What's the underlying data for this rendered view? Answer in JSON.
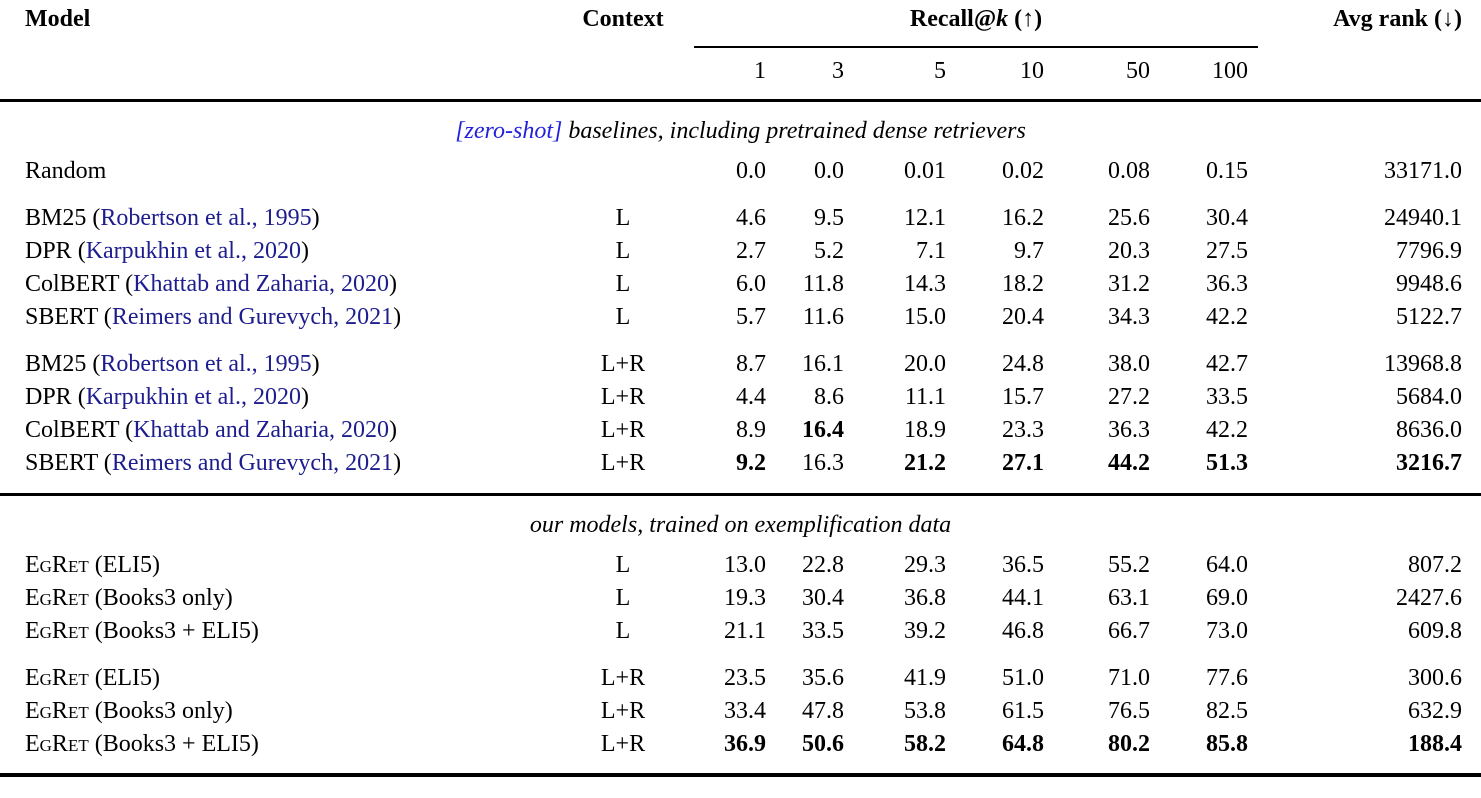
{
  "header": {
    "model": "Model",
    "context": "Context",
    "recall_pre": "Recall@",
    "recall_k": "k",
    "recall_post": " (↑)",
    "avg_rank": "Avg rank (↓)",
    "k_values": [
      "1",
      "3",
      "5",
      "10",
      "50",
      "100"
    ]
  },
  "colors": {
    "citation_link": "#1d1d8e",
    "section_link": "#2222dd",
    "text": "#000000",
    "background": "#ffffff"
  },
  "chart_data": {
    "type": "table",
    "title": "Recall@k and average rank of baselines vs. our models",
    "columns": [
      "Model",
      "Context",
      "Recall@1",
      "Recall@3",
      "Recall@5",
      "Recall@10",
      "Recall@50",
      "Recall@100",
      "Avg rank"
    ]
  },
  "sections": [
    {
      "title": {
        "link_text": "[zero-shot]",
        "rest_text": " baselines, including pretrained dense retrievers"
      },
      "groups": [
        {
          "rows": [
            {
              "model": {
                "sc": "",
                "plain": "Random",
                "cite": "",
                "after": ""
              },
              "context": "",
              "values": [
                "0.0",
                "0.0",
                "0.01",
                "0.02",
                "0.08",
                "0.15"
              ],
              "bold": [
                0,
                0,
                0,
                0,
                0,
                0
              ],
              "avg": "33171.0",
              "avg_bold": false
            }
          ]
        },
        {
          "rows": [
            {
              "model": {
                "sc": "",
                "plain": "BM25 (",
                "cite": "Robertson et al., 1995",
                "after": ")"
              },
              "context": "L",
              "values": [
                "4.6",
                "9.5",
                "12.1",
                "16.2",
                "25.6",
                "30.4"
              ],
              "bold": [
                0,
                0,
                0,
                0,
                0,
                0
              ],
              "avg": "24940.1",
              "avg_bold": false
            },
            {
              "model": {
                "sc": "",
                "plain": "DPR (",
                "cite": "Karpukhin et al., 2020",
                "after": ")"
              },
              "context": "L",
              "values": [
                "2.7",
                "5.2",
                "7.1",
                "9.7",
                "20.3",
                "27.5"
              ],
              "bold": [
                0,
                0,
                0,
                0,
                0,
                0
              ],
              "avg": "7796.9",
              "avg_bold": false
            },
            {
              "model": {
                "sc": "",
                "plain": "ColBERT (",
                "cite": "Khattab and Zaharia, 2020",
                "after": ")"
              },
              "context": "L",
              "values": [
                "6.0",
                "11.8",
                "14.3",
                "18.2",
                "31.2",
                "36.3"
              ],
              "bold": [
                0,
                0,
                0,
                0,
                0,
                0
              ],
              "avg": "9948.6",
              "avg_bold": false
            },
            {
              "model": {
                "sc": "",
                "plain": "SBERT (",
                "cite": "Reimers and Gurevych, 2021",
                "after": ")"
              },
              "context": "L",
              "values": [
                "5.7",
                "11.6",
                "15.0",
                "20.4",
                "34.3",
                "42.2"
              ],
              "bold": [
                0,
                0,
                0,
                0,
                0,
                0
              ],
              "avg": "5122.7",
              "avg_bold": false
            }
          ]
        },
        {
          "rows": [
            {
              "model": {
                "sc": "",
                "plain": "BM25 (",
                "cite": "Robertson et al., 1995",
                "after": ")"
              },
              "context": "L+R",
              "values": [
                "8.7",
                "16.1",
                "20.0",
                "24.8",
                "38.0",
                "42.7"
              ],
              "bold": [
                0,
                0,
                0,
                0,
                0,
                0
              ],
              "avg": "13968.8",
              "avg_bold": false
            },
            {
              "model": {
                "sc": "",
                "plain": "DPR (",
                "cite": "Karpukhin et al., 2020",
                "after": ")"
              },
              "context": "L+R",
              "values": [
                "4.4",
                "8.6",
                "11.1",
                "15.7",
                "27.2",
                "33.5"
              ],
              "bold": [
                0,
                0,
                0,
                0,
                0,
                0
              ],
              "avg": "5684.0",
              "avg_bold": false
            },
            {
              "model": {
                "sc": "",
                "plain": "ColBERT (",
                "cite": "Khattab and Zaharia, 2020",
                "after": ")"
              },
              "context": "L+R",
              "values": [
                "8.9",
                "16.4",
                "18.9",
                "23.3",
                "36.3",
                "42.2"
              ],
              "bold": [
                0,
                1,
                0,
                0,
                0,
                0
              ],
              "avg": "8636.0",
              "avg_bold": false
            },
            {
              "model": {
                "sc": "",
                "plain": "SBERT (",
                "cite": "Reimers and Gurevych, 2021",
                "after": ")"
              },
              "context": "L+R",
              "values": [
                "9.2",
                "16.3",
                "21.2",
                "27.1",
                "44.2",
                "51.3"
              ],
              "bold": [
                1,
                0,
                1,
                1,
                1,
                1
              ],
              "avg": "3216.7",
              "avg_bold": true
            }
          ]
        }
      ]
    },
    {
      "title": {
        "link_text": "",
        "rest_text": "our models, trained on exemplification data"
      },
      "groups": [
        {
          "rows": [
            {
              "model": {
                "sc": "EgRet",
                "plain": " (ELI5)",
                "cite": "",
                "after": ""
              },
              "context": "L",
              "values": [
                "13.0",
                "22.8",
                "29.3",
                "36.5",
                "55.2",
                "64.0"
              ],
              "bold": [
                0,
                0,
                0,
                0,
                0,
                0
              ],
              "avg": "807.2",
              "avg_bold": false
            },
            {
              "model": {
                "sc": "EgRet",
                "plain": " (Books3 only)",
                "cite": "",
                "after": ""
              },
              "context": "L",
              "values": [
                "19.3",
                "30.4",
                "36.8",
                "44.1",
                "63.1",
                "69.0"
              ],
              "bold": [
                0,
                0,
                0,
                0,
                0,
                0
              ],
              "avg": "2427.6",
              "avg_bold": false
            },
            {
              "model": {
                "sc": "EgRet",
                "plain": " (Books3 + ELI5)",
                "cite": "",
                "after": ""
              },
              "context": "L",
              "values": [
                "21.1",
                "33.5",
                "39.2",
                "46.8",
                "66.7",
                "73.0"
              ],
              "bold": [
                0,
                0,
                0,
                0,
                0,
                0
              ],
              "avg": "609.8",
              "avg_bold": false
            }
          ]
        },
        {
          "rows": [
            {
              "model": {
                "sc": "EgRet",
                "plain": " (ELI5)",
                "cite": "",
                "after": ""
              },
              "context": "L+R",
              "values": [
                "23.5",
                "35.6",
                "41.9",
                "51.0",
                "71.0",
                "77.6"
              ],
              "bold": [
                0,
                0,
                0,
                0,
                0,
                0
              ],
              "avg": "300.6",
              "avg_bold": false
            },
            {
              "model": {
                "sc": "EgRet",
                "plain": " (Books3 only)",
                "cite": "",
                "after": ""
              },
              "context": "L+R",
              "values": [
                "33.4",
                "47.8",
                "53.8",
                "61.5",
                "76.5",
                "82.5"
              ],
              "bold": [
                0,
                0,
                0,
                0,
                0,
                0
              ],
              "avg": "632.9",
              "avg_bold": false
            },
            {
              "model": {
                "sc": "EgRet",
                "plain": " (Books3 + ELI5)",
                "cite": "",
                "after": ""
              },
              "context": "L+R",
              "values": [
                "36.9",
                "50.6",
                "58.2",
                "64.8",
                "80.2",
                "85.8"
              ],
              "bold": [
                1,
                1,
                1,
                1,
                1,
                1
              ],
              "avg": "188.4",
              "avg_bold": true
            }
          ]
        }
      ]
    }
  ]
}
